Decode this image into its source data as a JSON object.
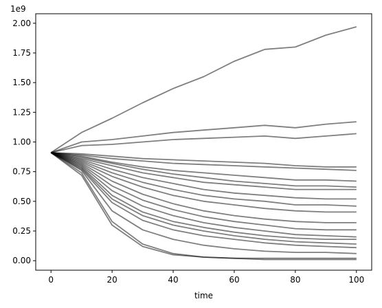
{
  "chart_data": {
    "type": "line",
    "title": "",
    "xlabel": "time",
    "ylabel": "",
    "y_multiplier_label": "1e9",
    "xlim": [
      -5,
      105
    ],
    "ylim": [
      -0.08,
      2.08
    ],
    "x_ticks": [
      0,
      20,
      40,
      60,
      80,
      100
    ],
    "x_tick_labels": [
      "0",
      "20",
      "40",
      "60",
      "80",
      "100"
    ],
    "y_ticks": [
      0.0,
      0.25,
      0.5,
      0.75,
      1.0,
      1.25,
      1.5,
      1.75,
      2.0
    ],
    "y_tick_labels": [
      "0.00",
      "0.25",
      "0.50",
      "0.75",
      "1.00",
      "1.25",
      "1.50",
      "1.75",
      "2.00"
    ],
    "grid": false,
    "legend": "none",
    "line_color": "#000000",
    "line_opacity": 0.5,
    "x": [
      0,
      10,
      20,
      30,
      40,
      50,
      60,
      70,
      80,
      90,
      100
    ],
    "series": [
      {
        "values": [
          0.91,
          1.08,
          1.2,
          1.33,
          1.45,
          1.55,
          1.68,
          1.78,
          1.8,
          1.9,
          1.97
        ]
      },
      {
        "values": [
          0.91,
          1.0,
          1.02,
          1.05,
          1.08,
          1.1,
          1.12,
          1.14,
          1.12,
          1.15,
          1.17
        ]
      },
      {
        "values": [
          0.91,
          0.97,
          0.98,
          1.0,
          1.02,
          1.03,
          1.04,
          1.05,
          1.03,
          1.05,
          1.07
        ]
      },
      {
        "values": [
          0.91,
          0.9,
          0.88,
          0.86,
          0.85,
          0.84,
          0.83,
          0.82,
          0.8,
          0.79,
          0.79
        ]
      },
      {
        "values": [
          0.91,
          0.89,
          0.86,
          0.84,
          0.82,
          0.81,
          0.8,
          0.79,
          0.78,
          0.77,
          0.76
        ]
      },
      {
        "values": [
          0.91,
          0.88,
          0.83,
          0.79,
          0.76,
          0.74,
          0.72,
          0.7,
          0.68,
          0.68,
          0.67
        ]
      },
      {
        "values": [
          0.91,
          0.87,
          0.82,
          0.77,
          0.73,
          0.7,
          0.67,
          0.65,
          0.63,
          0.63,
          0.62
        ]
      },
      {
        "values": [
          0.91,
          0.86,
          0.8,
          0.74,
          0.7,
          0.66,
          0.64,
          0.62,
          0.6,
          0.6,
          0.6
        ]
      },
      {
        "values": [
          0.91,
          0.85,
          0.77,
          0.7,
          0.65,
          0.6,
          0.57,
          0.55,
          0.53,
          0.52,
          0.52
        ]
      },
      {
        "values": [
          0.91,
          0.84,
          0.74,
          0.66,
          0.6,
          0.55,
          0.52,
          0.5,
          0.47,
          0.47,
          0.46
        ]
      },
      {
        "values": [
          0.91,
          0.83,
          0.71,
          0.62,
          0.55,
          0.5,
          0.47,
          0.44,
          0.42,
          0.41,
          0.41
        ]
      },
      {
        "values": [
          0.91,
          0.82,
          0.67,
          0.56,
          0.48,
          0.42,
          0.38,
          0.35,
          0.33,
          0.32,
          0.32
        ]
      },
      {
        "values": [
          0.91,
          0.81,
          0.63,
          0.51,
          0.43,
          0.37,
          0.33,
          0.3,
          0.27,
          0.26,
          0.26
        ]
      },
      {
        "values": [
          0.91,
          0.8,
          0.59,
          0.46,
          0.38,
          0.32,
          0.28,
          0.25,
          0.22,
          0.21,
          0.2
        ]
      },
      {
        "values": [
          0.91,
          0.79,
          0.55,
          0.41,
          0.33,
          0.28,
          0.24,
          0.21,
          0.19,
          0.18,
          0.18
        ]
      },
      {
        "values": [
          0.91,
          0.78,
          0.52,
          0.38,
          0.3,
          0.25,
          0.21,
          0.18,
          0.16,
          0.15,
          0.14
        ]
      },
      {
        "values": [
          0.91,
          0.77,
          0.49,
          0.34,
          0.26,
          0.21,
          0.18,
          0.15,
          0.13,
          0.12,
          0.11
        ]
      },
      {
        "values": [
          0.91,
          0.76,
          0.42,
          0.26,
          0.18,
          0.13,
          0.1,
          0.08,
          0.07,
          0.07,
          0.06
        ]
      },
      {
        "values": [
          0.91,
          0.72,
          0.3,
          0.12,
          0.05,
          0.03,
          0.02,
          0.02,
          0.02,
          0.02,
          0.02
        ]
      },
      {
        "values": [
          0.91,
          0.74,
          0.33,
          0.14,
          0.06,
          0.03,
          0.02,
          0.01,
          0.01,
          0.01,
          0.01
        ]
      }
    ]
  }
}
